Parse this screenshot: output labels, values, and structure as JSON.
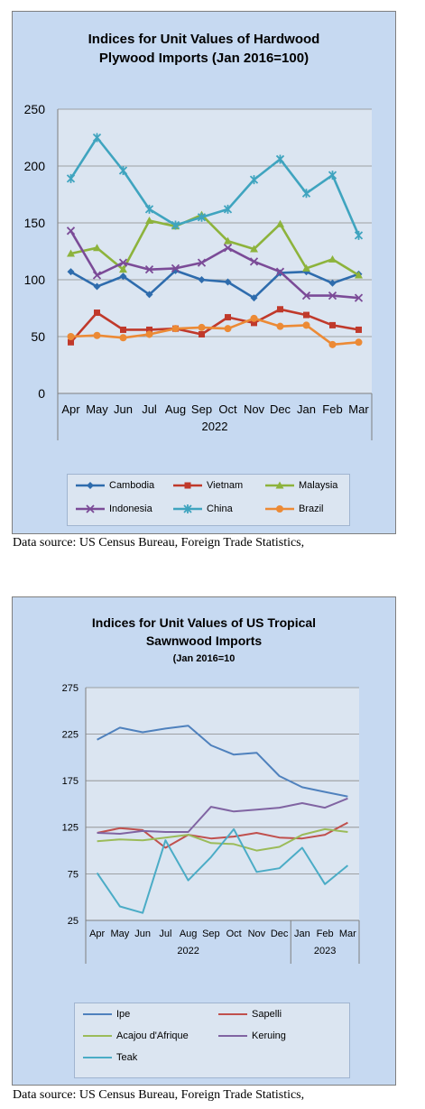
{
  "chart_data": [
    {
      "type": "line",
      "title": "Indices for Unit Values of Hardwood",
      "title_line2": "Plywood Imports (Jan 2016=100)",
      "categories": [
        "Apr",
        "May",
        "Jun",
        "Jul",
        "Aug",
        "Sep",
        "Oct",
        "Nov",
        "Dec",
        "Jan",
        "Feb",
        "Mar"
      ],
      "group_labels": [
        "2022"
      ],
      "ylim": [
        0,
        250
      ],
      "yticks": [
        "0",
        "50",
        "100",
        "150",
        "200",
        "250"
      ],
      "grid": true,
      "legend_position": "bottom",
      "series": [
        {
          "name": "Cambodia",
          "color": "#2e6cad",
          "marker": "diamond",
          "values": [
            107,
            94,
            103,
            87,
            108,
            100,
            98,
            84,
            106,
            107,
            97,
            105
          ]
        },
        {
          "name": "Vietnam",
          "color": "#c0392b",
          "marker": "square",
          "values": [
            45,
            71,
            56,
            56,
            57,
            52,
            67,
            62,
            74,
            69,
            60,
            56
          ]
        },
        {
          "name": "Malaysia",
          "color": "#8db33c",
          "marker": "triangle",
          "values": [
            123,
            128,
            109,
            152,
            147,
            157,
            134,
            127,
            149,
            110,
            118,
            104
          ]
        },
        {
          "name": "Indonesia",
          "color": "#7b4b97",
          "marker": "x",
          "values": [
            143,
            104,
            115,
            109,
            110,
            115,
            128,
            116,
            107,
            86,
            86,
            84
          ]
        },
        {
          "name": "China",
          "color": "#3fa4bf",
          "marker": "star",
          "values": [
            189,
            225,
            196,
            162,
            148,
            155,
            162,
            188,
            206,
            176,
            192,
            139
          ]
        },
        {
          "name": "Brazil",
          "color": "#ec8a35",
          "marker": "circle",
          "values": [
            50,
            51,
            49,
            52,
            57,
            58,
            57,
            66,
            59,
            60,
            43,
            45
          ]
        }
      ]
    },
    {
      "type": "line",
      "title": "Indices for Unit Values of US Tropical",
      "title_line2": "Sawnwood Imports",
      "subtitle": "(Jan 2016=10",
      "categories": [
        "Apr",
        "May",
        "Jun",
        "Jul",
        "Aug",
        "Sep",
        "Oct",
        "Nov",
        "Dec",
        "Jan",
        "Feb",
        "Mar"
      ],
      "group_labels": [
        "2022",
        "2023"
      ],
      "ylim": [
        25,
        275
      ],
      "yticks": [
        "25",
        "75",
        "125",
        "175",
        "225",
        "275"
      ],
      "grid": true,
      "legend_position": "bottom",
      "series": [
        {
          "name": "Ipe",
          "color": "#4f81bd",
          "values": [
            219,
            232,
            227,
            231,
            234,
            213,
            203,
            205,
            180,
            168,
            163,
            158
          ]
        },
        {
          "name": "Sapelli",
          "color": "#c0504d",
          "values": [
            119,
            124,
            122,
            103,
            117,
            113,
            115,
            119,
            114,
            113,
            117,
            130
          ]
        },
        {
          "name": "Acajou d'Afrique",
          "color": "#9bbb59",
          "values": [
            110,
            112,
            111,
            114,
            117,
            108,
            107,
            100,
            104,
            117,
            123,
            120
          ]
        },
        {
          "name": "Keruing",
          "color": "#8064a2",
          "values": [
            119,
            118,
            121,
            120,
            120,
            147,
            142,
            144,
            146,
            151,
            146,
            156
          ]
        },
        {
          "name": "Teak",
          "color": "#4bacc6",
          "values": [
            76,
            40,
            33,
            111,
            68,
            93,
            123,
            77,
            81,
            103,
            64,
            84
          ]
        }
      ]
    }
  ],
  "sources": {
    "source1": "Data source: US Census Bureau, Foreign Trade Statistics,",
    "source2": "Data source: US Census Bureau, Foreign Trade Statistics,"
  }
}
